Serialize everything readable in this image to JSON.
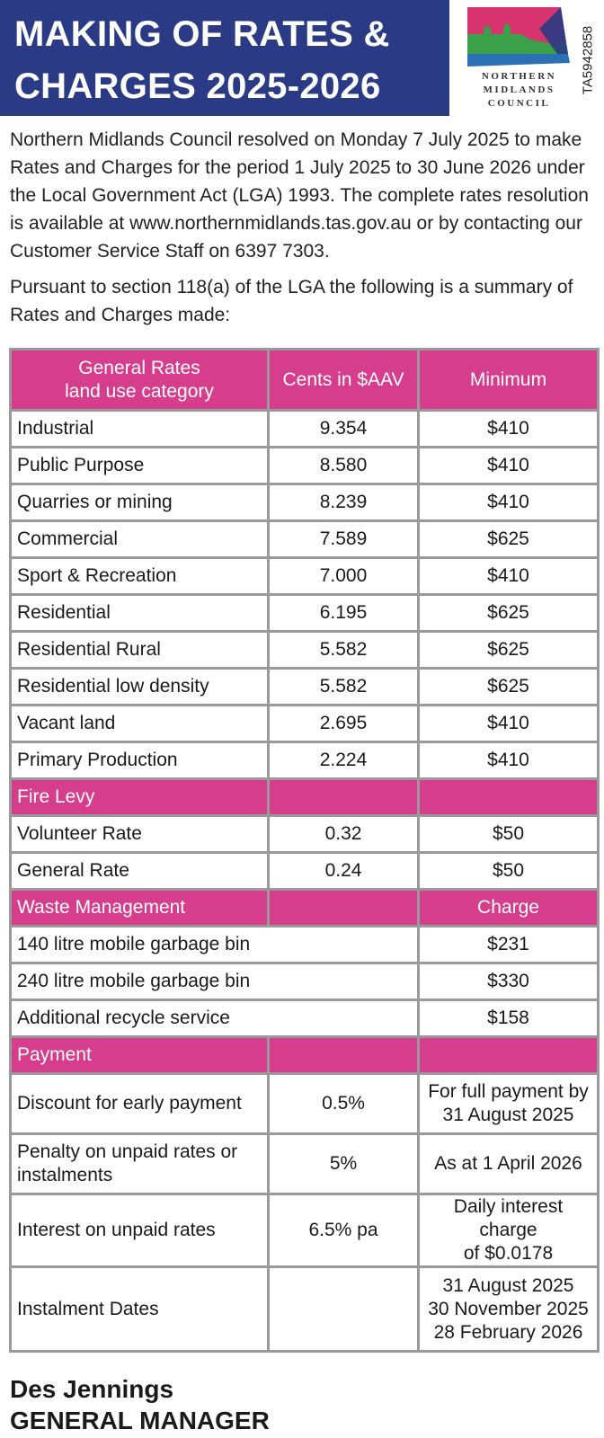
{
  "header": {
    "title_line1": "MAKING OF RATES &",
    "title_line2": "CHARGES 2025-2026",
    "ref_code": "TA5942858"
  },
  "logo": {
    "line1": "NORTHERN",
    "line2": "MIDLANDS",
    "line3": "COUNCIL",
    "colors": {
      "magenta": "#d6336f",
      "green": "#3aa14a",
      "blue": "#2b6fb5",
      "cream": "#f3f0e2"
    }
  },
  "intro": {
    "paragraph1": "Northern Midlands Council resolved on Monday 7 July 2025 to make Rates and Charges for the period 1 July 2025 to 30 June 2026 under the Local Government Act (LGA) 1993. The complete rates resolution is available at www.northernmidlands.tas.gov.au or by contacting our Customer Service Staff on 6397 7303.",
    "paragraph2": "Pursuant to section 118(a) of the LGA the following is a summary of Rates and Charges made:"
  },
  "table": {
    "header": {
      "col1_line1": "General Rates",
      "col1_line2": "land use category",
      "col2": "Cents in $AAV",
      "col3": "Minimum"
    },
    "general_rates": [
      {
        "category": "Industrial",
        "cents": "9.354",
        "minimum": "$410"
      },
      {
        "category": "Public Purpose",
        "cents": "8.580",
        "minimum": "$410"
      },
      {
        "category": "Quarries or mining",
        "cents": "8.239",
        "minimum": "$410"
      },
      {
        "category": "Commercial",
        "cents": "7.589",
        "minimum": "$625"
      },
      {
        "category": "Sport & Recreation",
        "cents": "7.000",
        "minimum": "$410"
      },
      {
        "category": "Residential",
        "cents": "6.195",
        "minimum": "$625"
      },
      {
        "category": "Residential Rural",
        "cents": "5.582",
        "minimum": "$625"
      },
      {
        "category": "Residential low density",
        "cents": "5.582",
        "minimum": "$625"
      },
      {
        "category": "Vacant land",
        "cents": "2.695",
        "minimum": "$410"
      },
      {
        "category": "Primary Production",
        "cents": "2.224",
        "minimum": "$410"
      }
    ],
    "fire_levy": {
      "heading": "Fire Levy",
      "rows": [
        {
          "label": "Volunteer Rate",
          "rate": "0.32",
          "minimum": "$50"
        },
        {
          "label": "General Rate",
          "rate": "0.24",
          "minimum": "$50"
        }
      ]
    },
    "waste": {
      "heading": "Waste Management",
      "charge_heading": "Charge",
      "rows": [
        {
          "label": "140 litre mobile garbage bin",
          "charge": "$231"
        },
        {
          "label": "240 litre mobile garbage bin",
          "charge": "$330"
        },
        {
          "label": "Additional recycle service",
          "charge": "$158"
        }
      ]
    },
    "payment": {
      "heading": "Payment",
      "discount": {
        "label": "Discount for early payment",
        "value": "0.5%",
        "note_line1": "For full payment by",
        "note_line2": "31 August 2025"
      },
      "penalty": {
        "label_line1": "Penalty on unpaid rates or",
        "label_line2": "instalments",
        "value": "5%",
        "note": "As at 1 April 2026"
      },
      "interest": {
        "label": "Interest on unpaid rates",
        "value": "6.5% pa",
        "note_line1": "Daily interest charge",
        "note_line2": "of $0.0178"
      },
      "instalments": {
        "label": "Instalment Dates",
        "dates": [
          "31 August 2025",
          "30 November 2025",
          "28 February 2026"
        ]
      }
    }
  },
  "signature": {
    "name": "Des Jennings",
    "title": "GENERAL MANAGER"
  }
}
